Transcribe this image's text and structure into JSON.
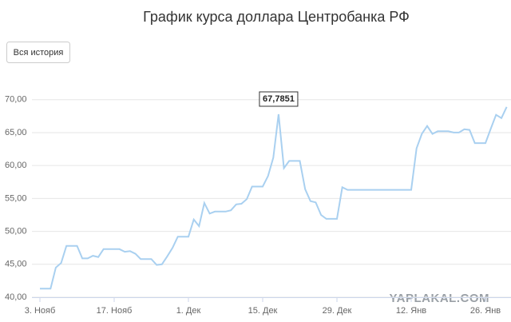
{
  "chart_data": {
    "type": "line",
    "title": "График курса доллара Центробанка РФ",
    "button": "Вся история",
    "watermark": "YAPLAKAL.COM",
    "x": [
      0,
      2,
      3,
      4,
      5,
      7,
      8,
      9,
      10,
      11,
      12,
      15,
      16,
      17,
      18,
      19,
      21,
      22,
      23,
      24,
      25,
      26,
      28,
      29,
      30,
      31,
      32,
      33,
      35,
      36,
      37,
      38,
      39,
      40,
      42,
      43,
      44,
      45,
      46,
      47,
      49,
      50,
      51,
      52,
      53,
      54,
      56,
      57,
      58,
      70,
      71,
      72,
      73,
      74,
      75,
      77,
      78,
      79,
      80,
      81,
      82,
      84,
      85,
      86,
      87,
      88
    ],
    "series": [
      {
        "color": "#a9d0f0",
        "values": [
          41.3,
          41.3,
          44.5,
          45.2,
          47.8,
          47.8,
          45.9,
          45.9,
          46.3,
          46.1,
          47.3,
          47.3,
          46.9,
          47.0,
          46.6,
          45.8,
          45.8,
          44.9,
          45.0,
          46.2,
          47.5,
          49.2,
          49.2,
          51.8,
          50.8,
          54.3,
          52.7,
          53.0,
          53.0,
          53.2,
          54.1,
          54.2,
          54.9,
          56.8,
          56.8,
          58.4,
          61.2,
          67.7851,
          59.6,
          60.7,
          60.7,
          56.4,
          54.6,
          54.4,
          52.5,
          51.9,
          51.9,
          56.7,
          56.3,
          56.3,
          62.6,
          64.8,
          66.0,
          64.8,
          65.2,
          65.2,
          65.0,
          65.0,
          65.5,
          65.4,
          63.4,
          63.4,
          65.6,
          67.7,
          67.2,
          68.9
        ],
        "value_labels": {
          "37": "67,7851"
        }
      }
    ],
    "xlim": [
      0,
      88
    ],
    "xticks": [
      {
        "value": 0,
        "label": "3. Нояб"
      },
      {
        "value": 14,
        "label": "17. Нояб"
      },
      {
        "value": 28,
        "label": "1. Дек"
      },
      {
        "value": 42,
        "label": "15. Дек"
      },
      {
        "value": 56,
        "label": "29. Дек"
      },
      {
        "value": 70,
        "label": "12. Янв"
      },
      {
        "value": 84,
        "label": "26. Янв"
      }
    ],
    "ylim": [
      40,
      73
    ],
    "yticks": [
      {
        "value": 40,
        "label": "40,00"
      },
      {
        "value": 45,
        "label": "45,00"
      },
      {
        "value": 50,
        "label": "50,00"
      },
      {
        "value": 55,
        "label": "55,00"
      },
      {
        "value": 60,
        "label": "60,00"
      },
      {
        "value": 65,
        "label": "65,00"
      },
      {
        "value": 70,
        "label": "70,00"
      }
    ],
    "grid": true
  }
}
